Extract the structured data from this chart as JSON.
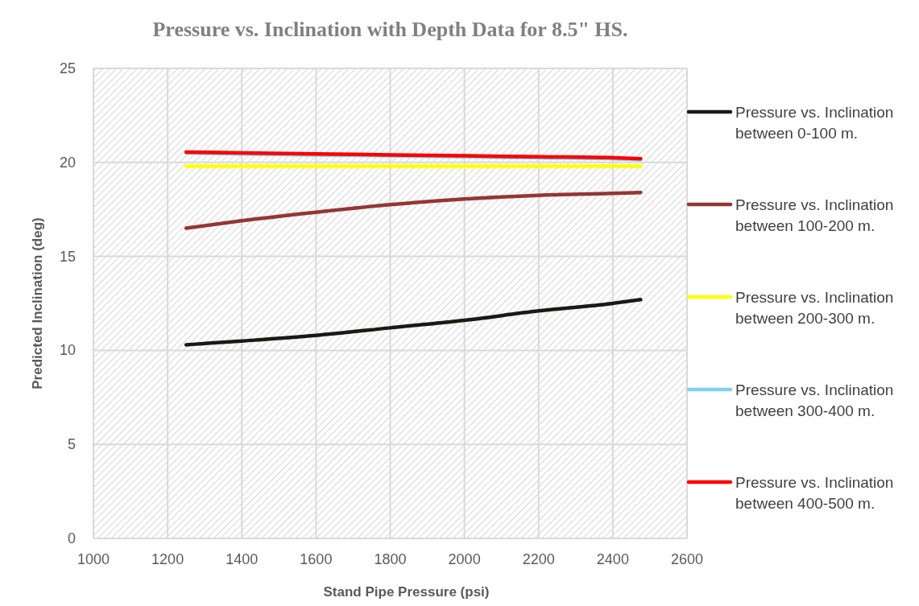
{
  "chart_data": {
    "type": "line",
    "title": "Pressure vs. Inclination with Depth Data for 8.5\" HS.",
    "xlabel": "Stand Pipe Pressure (psi)",
    "ylabel": "Predicted Inclination (deg)",
    "x": [
      1250,
      1400,
      1600,
      1800,
      2000,
      2200,
      2400,
      2475
    ],
    "series": [
      {
        "name": "Pressure vs. Inclination between 0-100 m.",
        "color": "#1a1a14",
        "values": [
          10.3,
          10.5,
          10.8,
          11.2,
          11.6,
          12.1,
          12.5,
          12.7
        ]
      },
      {
        "name": "Pressure vs. Inclination between 100-200 m.",
        "color": "#943634",
        "values": [
          16.5,
          16.9,
          17.35,
          17.75,
          18.05,
          18.25,
          18.35,
          18.4
        ]
      },
      {
        "name": "Pressure vs. Inclination between 200-300 m.",
        "color": "#ffff00",
        "values": [
          19.8,
          19.8,
          19.8,
          19.8,
          19.8,
          19.8,
          19.8,
          19.8
        ]
      },
      {
        "name": "Pressure vs. Inclination between 300-400 m.",
        "color": "#7fd1f5",
        "values": [
          20.5,
          20.45,
          20.4,
          20.35,
          20.3,
          20.25,
          20.2,
          20.15
        ]
      },
      {
        "name": "Pressure vs. Inclination between 400-500 m.",
        "color": "#ff0000",
        "values": [
          20.55,
          20.5,
          20.45,
          20.4,
          20.35,
          20.3,
          20.25,
          20.2
        ]
      }
    ],
    "xlim": [
      1000,
      2600
    ],
    "xticks": [
      1000,
      1200,
      1400,
      1600,
      1800,
      2000,
      2200,
      2400,
      2600
    ],
    "ylim": [
      0,
      25
    ],
    "yticks": [
      0,
      5,
      10,
      15,
      20,
      25
    ],
    "grid": true,
    "legend": "right",
    "marker": "none",
    "line_style": "solid"
  }
}
